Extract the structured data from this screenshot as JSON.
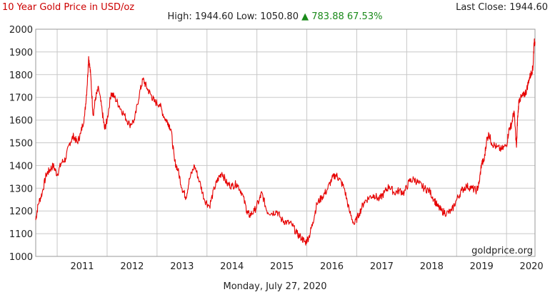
{
  "header": {
    "title": "10 Year Gold Price in USD/oz",
    "last_close": "Last Close: 1944.60",
    "high_low": "High: 1944.60 Low: 1050.80",
    "change_arrow": "▲",
    "change": "783.88 67.53%"
  },
  "footer": {
    "date": "Monday, July 27, 2020",
    "watermark": "goldprice.org"
  },
  "colors": {
    "line": "#e60000",
    "title": "#cc0000",
    "change": "#1a8a1a",
    "grid": "#c8c8c8"
  },
  "chart_data": {
    "type": "line",
    "title": "10 Year Gold Price in USD/oz",
    "xlabel": "",
    "ylabel": "",
    "ylim": [
      1000,
      2000
    ],
    "xlim": [
      2010.57,
      2020.57
    ],
    "yticks": [
      1000,
      1100,
      1200,
      1300,
      1400,
      1500,
      1600,
      1700,
      1800,
      1900,
      2000
    ],
    "xticks": [
      "2011",
      "2012",
      "2013",
      "2014",
      "2015",
      "2016",
      "2017",
      "2018",
      "2019",
      "2020"
    ],
    "grid": true,
    "legend": "none",
    "series": [
      {
        "x": [
          2010.57,
          2010.62,
          2010.7,
          2010.78,
          2010.85,
          2010.92,
          2011.0,
          2011.08,
          2011.17,
          2011.25,
          2011.33,
          2011.4,
          2011.47,
          2011.55,
          2011.6,
          2011.63,
          2011.67,
          2011.72,
          2011.77,
          2011.83,
          2011.9,
          2011.95,
          2012.0,
          2012.08,
          2012.15,
          2012.25,
          2012.35,
          2012.45,
          2012.55,
          2012.65,
          2012.72,
          2012.8,
          2012.88,
          2012.95,
          2013.05,
          2013.15,
          2013.22,
          2013.28,
          2013.35,
          2013.42,
          2013.5,
          2013.58,
          2013.65,
          2013.75,
          2013.85,
          2013.95,
          2014.05,
          2014.15,
          2014.22,
          2014.3,
          2014.4,
          2014.5,
          2014.6,
          2014.7,
          2014.8,
          2014.85,
          2014.95,
          2015.05,
          2015.1,
          2015.2,
          2015.3,
          2015.4,
          2015.5,
          2015.6,
          2015.7,
          2015.8,
          2015.9,
          2015.97,
          2016.05,
          2016.12,
          2016.2,
          2016.3,
          2016.4,
          2016.5,
          2016.58,
          2016.65,
          2016.75,
          2016.85,
          2016.95,
          2017.05,
          2017.15,
          2017.25,
          2017.35,
          2017.45,
          2017.55,
          2017.65,
          2017.75,
          2017.85,
          2017.95,
          2018.05,
          2018.15,
          2018.25,
          2018.35,
          2018.45,
          2018.55,
          2018.62,
          2018.7,
          2018.8,
          2018.9,
          2019.0,
          2019.1,
          2019.2,
          2019.3,
          2019.4,
          2019.45,
          2019.5,
          2019.55,
          2019.6,
          2019.65,
          2019.7,
          2019.8,
          2019.9,
          2020.0,
          2020.05,
          2020.1,
          2020.15,
          2020.2,
          2020.22,
          2020.25,
          2020.3,
          2020.35,
          2020.4,
          2020.45,
          2020.5,
          2020.53,
          2020.55,
          2020.57
        ],
        "values": [
          1160,
          1230,
          1280,
          1360,
          1380,
          1400,
          1360,
          1410,
          1430,
          1500,
          1530,
          1500,
          1540,
          1620,
          1750,
          1880,
          1800,
          1620,
          1700,
          1740,
          1640,
          1560,
          1600,
          1720,
          1700,
          1660,
          1620,
          1580,
          1600,
          1720,
          1780,
          1740,
          1710,
          1680,
          1670,
          1610,
          1590,
          1560,
          1420,
          1380,
          1300,
          1260,
          1340,
          1400,
          1330,
          1250,
          1220,
          1300,
          1340,
          1370,
          1320,
          1310,
          1320,
          1280,
          1200,
          1180,
          1200,
          1250,
          1280,
          1200,
          1190,
          1200,
          1160,
          1150,
          1140,
          1100,
          1080,
          1060,
          1090,
          1150,
          1230,
          1260,
          1290,
          1340,
          1360,
          1340,
          1300,
          1200,
          1140,
          1190,
          1240,
          1260,
          1270,
          1250,
          1280,
          1310,
          1280,
          1290,
          1280,
          1330,
          1340,
          1320,
          1300,
          1290,
          1250,
          1220,
          1200,
          1190,
          1200,
          1250,
          1290,
          1310,
          1300,
          1290,
          1320,
          1410,
          1420,
          1510,
          1540,
          1500,
          1480,
          1470,
          1490,
          1560,
          1580,
          1640,
          1480,
          1600,
          1690,
          1700,
          1710,
          1730,
          1780,
          1810,
          1830,
          1940,
          1945
        ]
      }
    ]
  }
}
